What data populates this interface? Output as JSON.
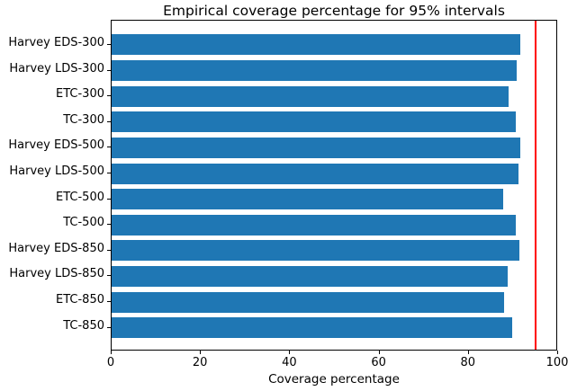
{
  "chart_data": {
    "type": "bar",
    "orientation": "horizontal",
    "title": "Empirical coverage percentage for 95% intervals",
    "xlabel": "Coverage percentage",
    "ylabel": "",
    "categories": [
      "Harvey EDS-300",
      "Harvey LDS-300",
      "ETC-300",
      "TC-300",
      "Harvey EDS-500",
      "Harvey LDS-500",
      "ETC-500",
      "TC-500",
      "Harvey EDS-850",
      "Harvey LDS-850",
      "ETC-850",
      "TC-850"
    ],
    "values": [
      91.5,
      90.8,
      88.9,
      90.5,
      91.5,
      91.2,
      87.7,
      90.5,
      91.3,
      88.8,
      88.0,
      89.8
    ],
    "xlim": [
      0,
      100
    ],
    "xticks": [
      0,
      20,
      40,
      60,
      80,
      100
    ],
    "bar_color": "#1f77b4",
    "reference_line": {
      "orientation": "vertical",
      "value": 95,
      "color": "#ff0000"
    },
    "grid": false,
    "legend": null
  }
}
